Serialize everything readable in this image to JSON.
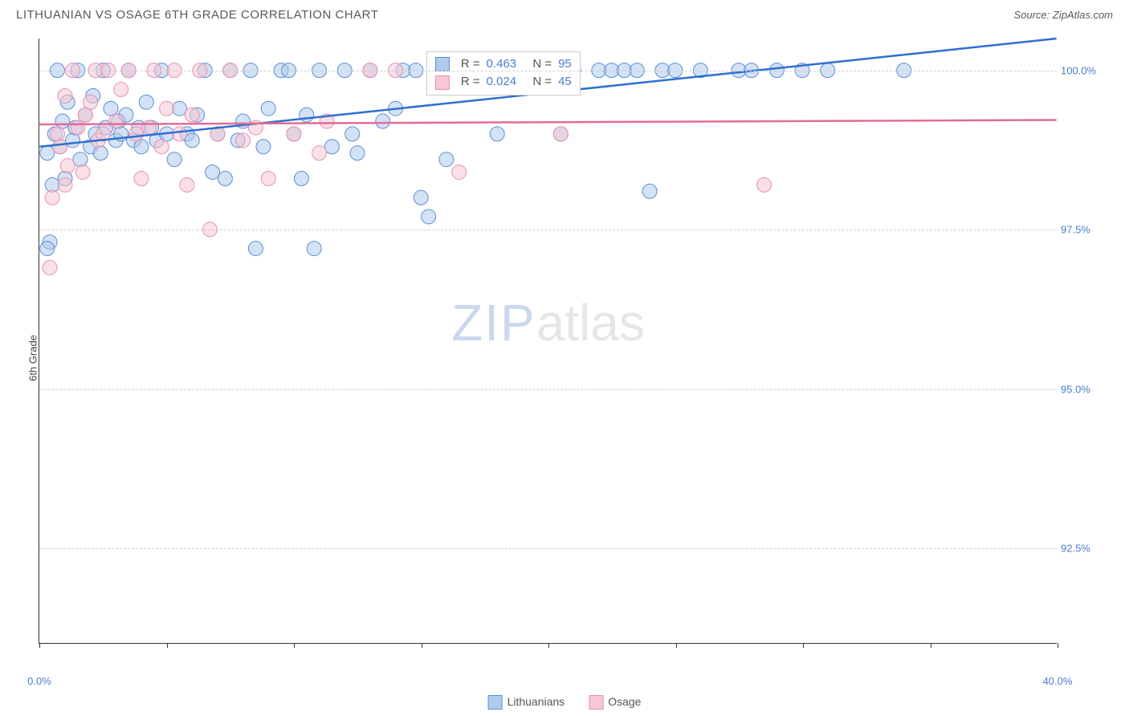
{
  "title": "LITHUANIAN VS OSAGE 6TH GRADE CORRELATION CHART",
  "source": "Source: ZipAtlas.com",
  "ylabel": "6th Grade",
  "watermark_a": "ZIP",
  "watermark_b": "atlas",
  "chart": {
    "type": "scatter",
    "xlim": [
      0,
      40
    ],
    "ylim": [
      91,
      100.5
    ],
    "xticks": [
      0,
      5,
      10,
      15,
      20,
      25,
      30,
      35,
      40
    ],
    "xtick_labels": {
      "0": "0.0%",
      "40": "40.0%"
    },
    "yticks": [
      92.5,
      95.0,
      97.5,
      100.0
    ],
    "ytick_labels": [
      "92.5%",
      "95.0%",
      "97.5%",
      "100.0%"
    ],
    "grid_color": "#d0d0d0",
    "background_color": "#ffffff",
    "axis_color": "#333333"
  },
  "series": [
    {
      "name": "Lithuanians",
      "fill": "#aecbeb",
      "stroke": "#5a8fd6",
      "fill_opacity": 0.55,
      "marker_radius": 9,
      "trend": {
        "x1": 0,
        "y1": 98.8,
        "x2": 40,
        "y2": 100.5,
        "color": "#2e6fd1",
        "width": 2.5
      },
      "corr": {
        "r": "0.463",
        "n": "95"
      },
      "points": [
        [
          0.3,
          98.7
        ],
        [
          0.4,
          97.3
        ],
        [
          0.5,
          98.2
        ],
        [
          0.6,
          99.0
        ],
        [
          0.7,
          100.0
        ],
        [
          0.8,
          98.8
        ],
        [
          0.9,
          99.2
        ],
        [
          1.0,
          98.3
        ],
        [
          1.1,
          99.5
        ],
        [
          1.3,
          98.9
        ],
        [
          1.4,
          99.1
        ],
        [
          1.5,
          100.0
        ],
        [
          1.6,
          98.6
        ],
        [
          1.8,
          99.3
        ],
        [
          2.0,
          98.8
        ],
        [
          2.1,
          99.6
        ],
        [
          2.2,
          99.0
        ],
        [
          2.4,
          98.7
        ],
        [
          2.5,
          100.0
        ],
        [
          2.6,
          99.1
        ],
        [
          2.8,
          99.4
        ],
        [
          3.0,
          98.9
        ],
        [
          3.1,
          99.2
        ],
        [
          3.2,
          99.0
        ],
        [
          3.4,
          99.3
        ],
        [
          3.5,
          100.0
        ],
        [
          3.7,
          98.9
        ],
        [
          3.9,
          99.1
        ],
        [
          4.0,
          98.8
        ],
        [
          4.2,
          99.5
        ],
        [
          4.4,
          99.1
        ],
        [
          4.6,
          98.9
        ],
        [
          4.8,
          100.0
        ],
        [
          5.0,
          99.0
        ],
        [
          5.3,
          98.6
        ],
        [
          5.5,
          99.4
        ],
        [
          5.8,
          99.0
        ],
        [
          6.0,
          98.9
        ],
        [
          6.2,
          99.3
        ],
        [
          6.5,
          100.0
        ],
        [
          6.8,
          98.4
        ],
        [
          7.0,
          99.0
        ],
        [
          7.3,
          98.3
        ],
        [
          7.5,
          100.0
        ],
        [
          7.8,
          98.9
        ],
        [
          8.0,
          99.2
        ],
        [
          8.3,
          100.0
        ],
        [
          8.5,
          97.2
        ],
        [
          8.8,
          98.8
        ],
        [
          9.0,
          99.4
        ],
        [
          9.5,
          100.0
        ],
        [
          9.8,
          100.0
        ],
        [
          10.0,
          99.0
        ],
        [
          10.3,
          98.3
        ],
        [
          10.5,
          99.3
        ],
        [
          10.8,
          97.2
        ],
        [
          11.0,
          100.0
        ],
        [
          11.5,
          98.8
        ],
        [
          12.0,
          100.0
        ],
        [
          12.3,
          99.0
        ],
        [
          12.5,
          98.7
        ],
        [
          13.0,
          100.0
        ],
        [
          13.5,
          99.2
        ],
        [
          14.0,
          99.4
        ],
        [
          14.3,
          100.0
        ],
        [
          14.8,
          100.0
        ],
        [
          15.0,
          98.0
        ],
        [
          15.3,
          97.7
        ],
        [
          15.8,
          100.0
        ],
        [
          16.0,
          98.6
        ],
        [
          16.5,
          100.0
        ],
        [
          17.0,
          100.0
        ],
        [
          17.5,
          100.0
        ],
        [
          18.0,
          99.0
        ],
        [
          18.5,
          100.0
        ],
        [
          19.0,
          100.0
        ],
        [
          19.5,
          100.0
        ],
        [
          20.0,
          100.0
        ],
        [
          20.5,
          99.0
        ],
        [
          21.0,
          100.0
        ],
        [
          22.0,
          100.0
        ],
        [
          22.5,
          100.0
        ],
        [
          23.0,
          100.0
        ],
        [
          23.5,
          100.0
        ],
        [
          24.0,
          98.1
        ],
        [
          24.5,
          100.0
        ],
        [
          25.0,
          100.0
        ],
        [
          26.0,
          100.0
        ],
        [
          27.5,
          100.0
        ],
        [
          28.0,
          100.0
        ],
        [
          29.0,
          100.0
        ],
        [
          30.0,
          100.0
        ],
        [
          31.0,
          100.0
        ],
        [
          34.0,
          100.0
        ],
        [
          0.3,
          97.2
        ]
      ]
    },
    {
      "name": "Osage",
      "fill": "#f6c7d4",
      "stroke": "#e98fb0",
      "fill_opacity": 0.55,
      "marker_radius": 9,
      "trend": {
        "x1": 0,
        "y1": 99.15,
        "x2": 40,
        "y2": 99.22,
        "color": "#e26b97",
        "width": 2.5
      },
      "corr": {
        "r": "0.024",
        "n": "45"
      },
      "points": [
        [
          0.4,
          96.9
        ],
        [
          0.5,
          98.0
        ],
        [
          0.7,
          99.0
        ],
        [
          0.8,
          98.8
        ],
        [
          1.0,
          99.6
        ],
        [
          1.1,
          98.5
        ],
        [
          1.3,
          100.0
        ],
        [
          1.5,
          99.1
        ],
        [
          1.7,
          98.4
        ],
        [
          1.8,
          99.3
        ],
        [
          2.0,
          99.5
        ],
        [
          2.2,
          100.0
        ],
        [
          2.3,
          98.9
        ],
        [
          2.5,
          99.0
        ],
        [
          2.7,
          100.0
        ],
        [
          3.0,
          99.2
        ],
        [
          3.2,
          99.7
        ],
        [
          3.5,
          100.0
        ],
        [
          3.8,
          99.0
        ],
        [
          4.0,
          98.3
        ],
        [
          4.3,
          99.1
        ],
        [
          4.5,
          100.0
        ],
        [
          4.8,
          98.8
        ],
        [
          5.0,
          99.4
        ],
        [
          5.3,
          100.0
        ],
        [
          5.5,
          99.0
        ],
        [
          5.8,
          98.2
        ],
        [
          6.0,
          99.3
        ],
        [
          6.3,
          100.0
        ],
        [
          6.7,
          97.5
        ],
        [
          7.0,
          99.0
        ],
        [
          7.5,
          100.0
        ],
        [
          8.0,
          98.9
        ],
        [
          8.5,
          99.1
        ],
        [
          9.0,
          98.3
        ],
        [
          10.0,
          99.0
        ],
        [
          11.0,
          98.7
        ],
        [
          11.3,
          99.2
        ],
        [
          13.0,
          100.0
        ],
        [
          14.0,
          100.0
        ],
        [
          16.5,
          98.4
        ],
        [
          18.0,
          100.0
        ],
        [
          20.5,
          99.0
        ],
        [
          28.5,
          98.2
        ],
        [
          1.0,
          98.2
        ]
      ]
    }
  ],
  "legend": {
    "items": [
      {
        "label": "Lithuanians",
        "fill": "#aecbeb",
        "stroke": "#5a8fd6"
      },
      {
        "label": "Osage",
        "fill": "#f6c7d4",
        "stroke": "#e98fb0"
      }
    ]
  },
  "corr_box": {
    "r_label": "R =",
    "n_label": "N ="
  }
}
